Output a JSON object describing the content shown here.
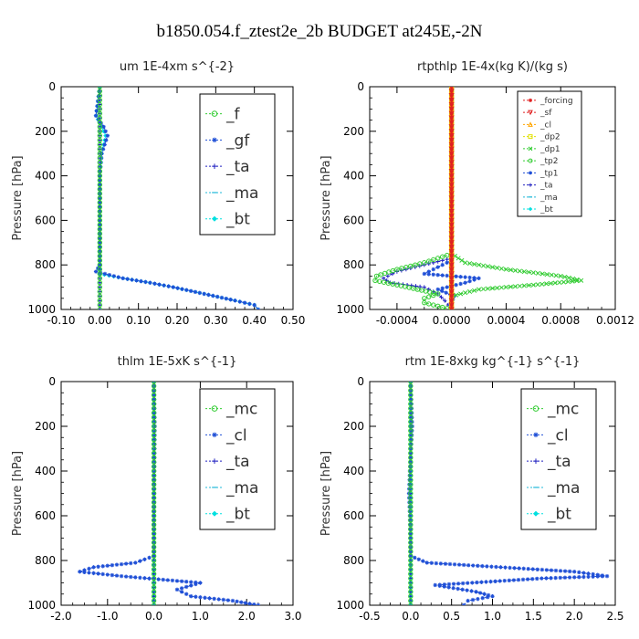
{
  "figure_title": "b1850.054.f_ztest2e_2b  BUDGET at245E,-2N",
  "colors": {
    "green": "#33cc33",
    "blue": "#1f4fd6",
    "navy": "#2020c0",
    "cyan": "#1fb8d8",
    "aqua": "#00e0e0",
    "red": "#e02020",
    "orange": "#ffa500",
    "yellow": "#e0e000"
  },
  "chart_data": [
    {
      "type": "line",
      "title": "um   1E-4xm s^{-2}",
      "ylabel": "Pressure [hPa]",
      "xlim": [
        -0.1,
        0.5
      ],
      "ylim": [
        1000,
        0
      ],
      "xticks": [
        "-0.10",
        "0.00",
        "0.10",
        "0.20",
        "0.30",
        "0.40",
        "0.50"
      ],
      "yticks": [
        "0",
        "200",
        "400",
        "600",
        "800",
        "1000"
      ],
      "grid": false,
      "legend_position": "top-right",
      "series": [
        {
          "name": "_f",
          "color": "green",
          "marker": "o",
          "y": [
            0,
            100,
            200,
            300,
            400,
            500,
            600,
            700,
            800,
            900,
            1000
          ],
          "x": [
            0,
            0,
            0,
            0,
            0,
            0,
            0,
            0,
            0,
            0,
            0
          ]
        },
        {
          "name": "_gf",
          "color": "blue",
          "marker": "*",
          "y": [
            0,
            130,
            180,
            220,
            300,
            400,
            600,
            800,
            830,
            860,
            880,
            900,
            930,
            960,
            980,
            1000
          ],
          "x": [
            0,
            -0.01,
            0.01,
            0.02,
            0.005,
            0,
            0,
            0,
            -0.01,
            0.06,
            0.13,
            0.19,
            0.27,
            0.35,
            0.4,
            0.41
          ]
        },
        {
          "name": "_ta",
          "color": "navy",
          "marker": "+",
          "y": [
            0,
            200,
            400,
            600,
            800,
            1000
          ],
          "x": [
            0,
            0,
            0,
            0,
            0,
            0
          ]
        },
        {
          "name": "_ma",
          "color": "cyan",
          "marker": "-",
          "y": [
            0,
            200,
            400,
            600,
            800,
            1000
          ],
          "x": [
            0,
            0,
            0,
            0,
            0,
            0
          ]
        },
        {
          "name": "_bt",
          "color": "aqua",
          "marker": "◆",
          "y": [
            0,
            130,
            180,
            220,
            300,
            400,
            600,
            800,
            840,
            860,
            880,
            900,
            930,
            960,
            980,
            1000
          ],
          "x": [
            0,
            -0.01,
            0.005,
            0.015,
            0.005,
            0,
            0,
            0,
            0,
            0.06,
            0.13,
            0.19,
            0.27,
            0.35,
            0.4,
            0.41
          ]
        }
      ]
    },
    {
      "type": "line",
      "title": "rtpthlp   1E-4x(kg K)/(kg s)",
      "ylabel": "Pressure [hPa]",
      "xlim": [
        -0.0006,
        0.0012
      ],
      "ylim": [
        1000,
        0
      ],
      "xticks": [
        "-0.0004",
        "0.0000",
        "0.0004",
        "0.0008",
        "0.0012"
      ],
      "yticks": [
        "0",
        "200",
        "400",
        "600",
        "800",
        "1000"
      ],
      "grid": false,
      "legend_position": "top-right",
      "series": [
        {
          "name": "_forcing",
          "color": "red",
          "marker": "*",
          "y": [
            0,
            200,
            400,
            600,
            800,
            1000
          ],
          "x": [
            0,
            0,
            0,
            0,
            0,
            0
          ]
        },
        {
          "name": "_sf",
          "color": "red",
          "marker": "▽",
          "y": [
            0,
            200,
            400,
            600,
            800,
            1000
          ],
          "x": [
            0,
            0,
            0,
            0,
            0,
            0
          ]
        },
        {
          "name": "_cl",
          "color": "orange",
          "marker": "△",
          "y": [
            0,
            200,
            400,
            600,
            800,
            1000
          ],
          "x": [
            0,
            0,
            0,
            0,
            0,
            0
          ]
        },
        {
          "name": "_dp2",
          "color": "yellow",
          "marker": "□",
          "y": [
            0,
            200,
            400,
            600,
            800,
            1000
          ],
          "x": [
            0,
            0,
            0,
            0,
            0,
            0
          ]
        },
        {
          "name": "_dp1",
          "color": "green",
          "marker": "×",
          "y": [
            0,
            750,
            790,
            820,
            850,
            870,
            890,
            910,
            940,
            970,
            1000
          ],
          "x": [
            0,
            0,
            0.0001,
            0.0004,
            0.0008,
            0.00095,
            0.0006,
            0.0002,
            0,
            0,
            0
          ]
        },
        {
          "name": "_tp2",
          "color": "green",
          "marker": "o",
          "y": [
            0,
            750,
            790,
            820,
            850,
            870,
            890,
            910,
            930,
            950,
            970,
            1000
          ],
          "x": [
            0,
            0,
            -0.0002,
            -0.0004,
            -0.00055,
            -0.00056,
            -0.0004,
            -0.00025,
            -0.0001,
            -0.0002,
            -0.0002,
            0
          ]
        },
        {
          "name": "_tp1",
          "color": "blue",
          "marker": "*",
          "y": [
            0,
            780,
            810,
            840,
            860,
            880,
            910,
            940,
            970,
            1000
          ],
          "x": [
            0,
            0,
            -0.0001,
            -0.0002,
            0.0002,
            0.0001,
            -0.0001,
            2e-05,
            0,
            0
          ]
        },
        {
          "name": "_ta",
          "color": "navy",
          "marker": "+",
          "y": [
            0,
            770,
            800,
            830,
            860,
            880,
            900,
            930,
            960,
            1000
          ],
          "x": [
            0,
            0,
            -0.0002,
            -0.0004,
            -0.0005,
            -0.00045,
            -0.0002,
            -0.0001,
            -5e-05,
            0
          ]
        },
        {
          "name": "_ma",
          "color": "cyan",
          "marker": "-",
          "y": [
            0,
            200,
            400,
            600,
            800,
            1000
          ],
          "x": [
            0,
            0,
            0,
            0,
            0,
            0
          ]
        },
        {
          "name": "_bt",
          "color": "aqua",
          "marker": "◆",
          "y": [
            0,
            200,
            400,
            600,
            800,
            1000
          ],
          "x": [
            0,
            0,
            0,
            0,
            0,
            0
          ]
        }
      ]
    },
    {
      "type": "line",
      "title": "thlm   1E-5xK s^{-1}",
      "ylabel": "Pressure [hPa]",
      "xlim": [
        -2.0,
        3.0
      ],
      "ylim": [
        1000,
        0
      ],
      "xticks": [
        "-2.0",
        "-1.0",
        "0.0",
        "1.0",
        "2.0",
        "3.0"
      ],
      "yticks": [
        "0",
        "200",
        "400",
        "600",
        "800",
        "1000"
      ],
      "grid": false,
      "legend_position": "top-right",
      "series": [
        {
          "name": "_mc",
          "color": "green",
          "marker": "o",
          "y": [
            0,
            100,
            200,
            300,
            400,
            500,
            600,
            700,
            800,
            900,
            1000
          ],
          "x": [
            0,
            0,
            0,
            0,
            0,
            0,
            0,
            0,
            0,
            0,
            0
          ]
        },
        {
          "name": "_cl",
          "color": "blue",
          "marker": "*",
          "y": [
            0,
            200,
            400,
            600,
            780,
            810,
            830,
            850,
            870,
            900,
            930,
            960,
            980,
            1000
          ],
          "x": [
            0,
            0.02,
            0.01,
            0,
            0,
            -0.4,
            -1.3,
            -1.6,
            -0.7,
            1.0,
            0.5,
            0.8,
            1.7,
            2.25
          ]
        },
        {
          "name": "_ta",
          "color": "navy",
          "marker": "+",
          "y": [
            0,
            200,
            400,
            600,
            800,
            1000
          ],
          "x": [
            0,
            0,
            0,
            0,
            0,
            0
          ]
        },
        {
          "name": "_ma",
          "color": "cyan",
          "marker": "-",
          "y": [
            0,
            200,
            400,
            600,
            800,
            1000
          ],
          "x": [
            0,
            0,
            0,
            0,
            0,
            0
          ]
        },
        {
          "name": "_bt",
          "color": "aqua",
          "marker": "◆",
          "y": [
            0,
            200,
            400,
            600,
            800,
            1000
          ],
          "x": [
            0,
            0,
            0,
            0,
            0,
            0
          ]
        }
      ]
    },
    {
      "type": "line",
      "title": "rtm   1E-8xkg kg^{-1} s^{-1}",
      "ylabel": "Pressure [hPa]",
      "xlim": [
        -0.5,
        2.5
      ],
      "ylim": [
        1000,
        0
      ],
      "xticks": [
        "-0.5",
        "0.0",
        "0.5",
        "1.0",
        "1.5",
        "2.0",
        "2.5"
      ],
      "yticks": [
        "0",
        "200",
        "400",
        "600",
        "800",
        "1000"
      ],
      "grid": false,
      "legend_position": "top-right",
      "series": [
        {
          "name": "_mc",
          "color": "green",
          "marker": "o",
          "y": [
            0,
            100,
            200,
            300,
            400,
            500,
            600,
            700,
            800,
            900,
            1000
          ],
          "x": [
            0,
            0,
            0,
            0,
            0,
            0,
            0,
            0,
            0,
            0,
            0
          ]
        },
        {
          "name": "_cl",
          "color": "blue",
          "marker": "*",
          "y": [
            0,
            200,
            400,
            500,
            600,
            780,
            810,
            830,
            850,
            870,
            880,
            910,
            940,
            960,
            980,
            1000
          ],
          "x": [
            0,
            0.02,
            -0.01,
            -0.02,
            -0.01,
            0,
            0.2,
            1.1,
            2.0,
            2.4,
            1.6,
            0.3,
            0.8,
            1.0,
            0.7,
            0.65
          ]
        },
        {
          "name": "_ta",
          "color": "navy",
          "marker": "+",
          "y": [
            0,
            200,
            400,
            600,
            800,
            1000
          ],
          "x": [
            0,
            0,
            0,
            0,
            0,
            0
          ]
        },
        {
          "name": "_ma",
          "color": "cyan",
          "marker": "-",
          "y": [
            0,
            200,
            400,
            600,
            800,
            1000
          ],
          "x": [
            0,
            0,
            0,
            0,
            0,
            0
          ]
        },
        {
          "name": "_bt",
          "color": "aqua",
          "marker": "◆",
          "y": [
            0,
            200,
            400,
            600,
            800,
            1000
          ],
          "x": [
            0,
            0,
            0,
            0,
            0,
            0
          ]
        }
      ]
    }
  ]
}
